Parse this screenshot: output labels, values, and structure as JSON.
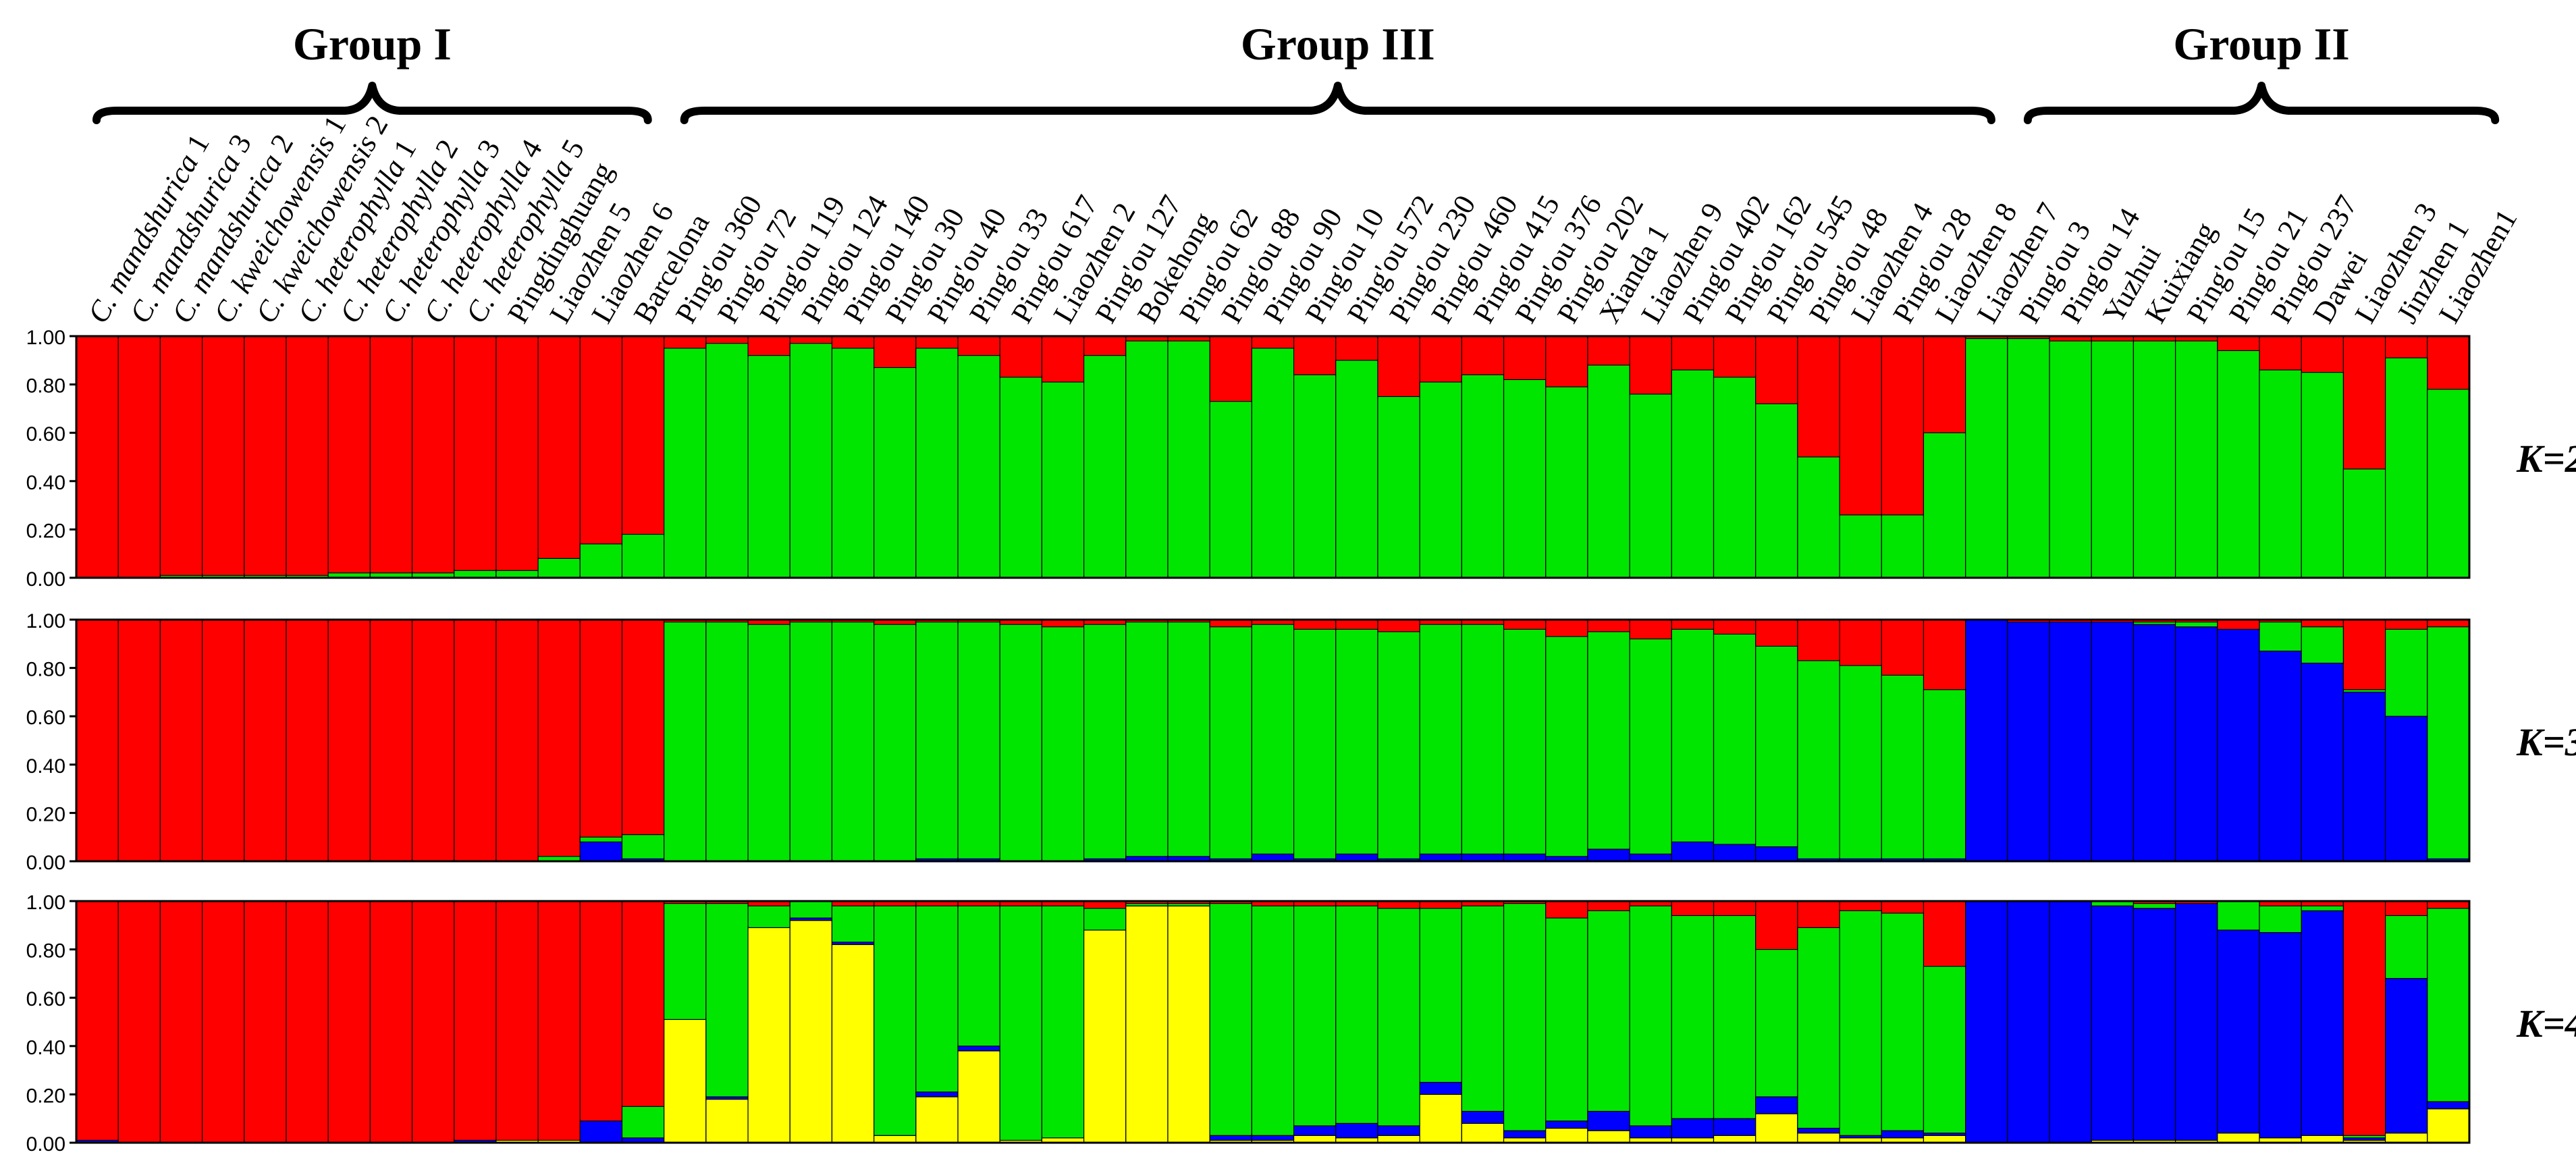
{
  "chart_data": {
    "type": "bar",
    "stacked": true,
    "title": "",
    "xlabel": "",
    "ylabel": "",
    "ylim": [
      0,
      1
    ],
    "y_ticks": [
      "0.00",
      "0.20",
      "0.40",
      "0.60",
      "0.80",
      "1.00"
    ],
    "colors": {
      "red": "#ff0000",
      "green": "#00e600",
      "blue": "#0000ff",
      "yellow": "#ffff00"
    },
    "groups": [
      {
        "name": "Group I",
        "start": 0,
        "end": 13
      },
      {
        "name": "Group III",
        "start": 14,
        "end": 45
      },
      {
        "name": "Group II",
        "start": 46,
        "end": 57
      }
    ],
    "categories": [
      {
        "plain": "C. mandshurica 1",
        "prefix": "C. mandshurica",
        "suffix": " 1",
        "italic": true
      },
      {
        "plain": "C. mandshurica 3",
        "prefix": "C. mandshurica",
        "suffix": " 3",
        "italic": true
      },
      {
        "plain": "C. mandshurica 2",
        "prefix": "C. mandshurica",
        "suffix": " 2",
        "italic": true
      },
      {
        "plain": "C. kweichowensis 1",
        "prefix": "C. kweichowensis",
        "suffix": " 1",
        "italic": true
      },
      {
        "plain": "C. kweichowensis 2",
        "prefix": "C. kweichowensis",
        "suffix": " 2",
        "italic": true
      },
      {
        "plain": "C. heterophylla 1",
        "prefix": "C. heterophylla",
        "suffix": " 1",
        "italic": true
      },
      {
        "plain": "C. heterophylla 2",
        "prefix": "C. heterophylla",
        "suffix": " 2",
        "italic": true
      },
      {
        "plain": "C. heterophylla 3",
        "prefix": "C. heterophylla",
        "suffix": " 3",
        "italic": true
      },
      {
        "plain": "C. heterophylla 4",
        "prefix": "C. heterophylla",
        "suffix": " 4",
        "italic": true
      },
      {
        "plain": "C. heterophylla 5",
        "prefix": "C. heterophylla",
        "suffix": " 5",
        "italic": true
      },
      {
        "plain": "Pingdinghuang",
        "italic": false
      },
      {
        "plain": "Liaozhen 5",
        "italic": false
      },
      {
        "plain": "Liaozhen 6",
        "italic": false
      },
      {
        "plain": "Barcelona",
        "italic": false
      },
      {
        "plain": "Ping'ou 360",
        "italic": false
      },
      {
        "plain": "Ping'ou 72",
        "italic": false
      },
      {
        "plain": "Ping'ou 119",
        "italic": false
      },
      {
        "plain": "Ping'ou 124",
        "italic": false
      },
      {
        "plain": "Ping'ou 140",
        "italic": false
      },
      {
        "plain": "Ping'ou 30",
        "italic": false
      },
      {
        "plain": "Ping'ou 40",
        "italic": false
      },
      {
        "plain": "Ping'ou 33",
        "italic": false
      },
      {
        "plain": "Ping'ou 617",
        "italic": false
      },
      {
        "plain": "Liaozhen 2",
        "italic": false
      },
      {
        "plain": "Ping'ou 127",
        "italic": false
      },
      {
        "plain": "Bokehong",
        "italic": false
      },
      {
        "plain": "Ping'ou 62",
        "italic": false
      },
      {
        "plain": "Ping'ou 88",
        "italic": false
      },
      {
        "plain": "Ping'ou 90",
        "italic": false
      },
      {
        "plain": "Ping'ou 10",
        "italic": false
      },
      {
        "plain": "Ping'ou 572",
        "italic": false
      },
      {
        "plain": "Ping'ou 230",
        "italic": false
      },
      {
        "plain": "Ping'ou 460",
        "italic": false
      },
      {
        "plain": "Ping'ou 415",
        "italic": false
      },
      {
        "plain": "Ping'ou 376",
        "italic": false
      },
      {
        "plain": "Ping'ou 202",
        "italic": false
      },
      {
        "plain": "Xianda 1",
        "italic": false
      },
      {
        "plain": "Liaozhen 9",
        "italic": false
      },
      {
        "plain": "Ping'ou 402",
        "italic": false
      },
      {
        "plain": "Ping'ou 162",
        "italic": false
      },
      {
        "plain": "Ping'ou 545",
        "italic": false
      },
      {
        "plain": "Ping'ou 48",
        "italic": false
      },
      {
        "plain": "Liaozhen 4",
        "italic": false
      },
      {
        "plain": "Ping'ou 28",
        "italic": false
      },
      {
        "plain": "Liaozhen 8",
        "italic": false
      },
      {
        "plain": "Liaozhen 7",
        "italic": false
      },
      {
        "plain": "Ping'ou 3",
        "italic": false
      },
      {
        "plain": "Ping'ou 14",
        "italic": false
      },
      {
        "plain": "Yuzhui",
        "italic": false
      },
      {
        "plain": "Kuixiang",
        "italic": false
      },
      {
        "plain": "Ping'ou 15",
        "italic": false
      },
      {
        "plain": "Ping'ou 21",
        "italic": false
      },
      {
        "plain": "Ping'ou 237",
        "italic": false
      },
      {
        "plain": "Dawei",
        "italic": false
      },
      {
        "plain": "Liaozhen 3",
        "italic": false
      },
      {
        "plain": "Jinzhen 1",
        "italic": false
      },
      {
        "plain": "Liaozhen1",
        "italic": false
      }
    ],
    "panels": [
      {
        "label": "K=2",
        "order": [
          "green",
          "red"
        ],
        "series": {
          "green": [
            0,
            0,
            0.01,
            0.01,
            0.01,
            0.01,
            0.02,
            0.02,
            0.02,
            0.03,
            0.03,
            0.08,
            0.14,
            0.18,
            0.95,
            0.97,
            0.92,
            0.97,
            0.95,
            0.87,
            0.95,
            0.92,
            0.83,
            0.81,
            0.92,
            0.98,
            0.98,
            0.73,
            0.95,
            0.84,
            0.9,
            0.75,
            0.81,
            0.84,
            0.82,
            0.79,
            0.88,
            0.76,
            0.86,
            0.83,
            0.72,
            0.5,
            0.26,
            0.26,
            0.6,
            0.99,
            0.99,
            0.98,
            0.98,
            0.98,
            0.98,
            0.94,
            0.86,
            0.85,
            0.45,
            0.91,
            0.78
          ]
        }
      },
      {
        "label": "K=3",
        "order": [
          "blue",
          "green",
          "red"
        ],
        "series": {
          "blue": [
            0,
            0,
            0,
            0,
            0,
            0,
            0,
            0,
            0,
            0,
            0,
            0,
            0.08,
            0.01,
            0,
            0,
            0,
            0,
            0,
            0,
            0.01,
            0.01,
            0,
            0,
            0.01,
            0.02,
            0.02,
            0.01,
            0.03,
            0.01,
            0.03,
            0.01,
            0.03,
            0.03,
            0.03,
            0.02,
            0.05,
            0.03,
            0.08,
            0.07,
            0.06,
            0.01,
            0.01,
            0.01,
            0.01,
            1.0,
            0.99,
            0.99,
            0.99,
            0.98,
            0.97,
            0.96,
            0.87,
            0.82,
            0.7,
            0.6,
            0.01
          ],
          "green": [
            0,
            0,
            0,
            0,
            0,
            0,
            0,
            0,
            0,
            0,
            0,
            0.02,
            0.02,
            0.1,
            0.99,
            0.99,
            0.98,
            0.99,
            0.99,
            0.98,
            0.98,
            0.98,
            0.98,
            0.97,
            0.97,
            0.97,
            0.97,
            0.96,
            0.95,
            0.95,
            0.93,
            0.94,
            0.95,
            0.95,
            0.93,
            0.91,
            0.9,
            0.89,
            0.88,
            0.87,
            0.83,
            0.82,
            0.8,
            0.76,
            0.7,
            0,
            0,
            0,
            0,
            0.01,
            0.02,
            0,
            0.12,
            0.15,
            0.01,
            0.36,
            0.96
          ]
        }
      },
      {
        "label": "K=4",
        "order": [
          "yellow",
          "blue",
          "green",
          "red"
        ],
        "series": {
          "yellow": [
            0,
            0,
            0,
            0,
            0,
            0,
            0,
            0,
            0,
            0,
            0.01,
            0.01,
            0,
            0,
            0.51,
            0.18,
            0.89,
            0.92,
            0.82,
            0.03,
            0.19,
            0.38,
            0.01,
            0.02,
            0.88,
            0.98,
            0.98,
            0.01,
            0.01,
            0.03,
            0.02,
            0.03,
            0.2,
            0.08,
            0.02,
            0.06,
            0.05,
            0.02,
            0.02,
            0.03,
            0.12,
            0.04,
            0.02,
            0.02,
            0.03,
            0,
            0,
            0,
            0.01,
            0.01,
            0.01,
            0.04,
            0.02,
            0.03,
            0.01,
            0.04,
            0.14
          ],
          "blue": [
            0.01,
            0,
            0,
            0,
            0,
            0,
            0,
            0,
            0,
            0.01,
            0,
            0,
            0.09,
            0.02,
            0,
            0.01,
            0,
            0.01,
            0.01,
            0,
            0.02,
            0.02,
            0,
            0,
            0,
            0,
            0,
            0.02,
            0.02,
            0.04,
            0.06,
            0.04,
            0.05,
            0.05,
            0.03,
            0.03,
            0.08,
            0.05,
            0.08,
            0.07,
            0.07,
            0.02,
            0.01,
            0.03,
            0.01,
            1.0,
            1.0,
            1.0,
            0.97,
            0.96,
            0.98,
            0.84,
            0.85,
            0.93,
            0.01,
            0.64,
            0.03
          ],
          "green": [
            0,
            0,
            0,
            0,
            0,
            0,
            0,
            0,
            0,
            0,
            0,
            0,
            0,
            0.13,
            0.48,
            0.8,
            0.09,
            0.07,
            0.15,
            0.95,
            0.77,
            0.58,
            0.97,
            0.96,
            0.09,
            0.01,
            0.01,
            0.96,
            0.95,
            0.91,
            0.9,
            0.9,
            0.72,
            0.85,
            0.94,
            0.84,
            0.83,
            0.91,
            0.84,
            0.84,
            0.61,
            0.83,
            0.93,
            0.9,
            0.69,
            0,
            0,
            0,
            0.02,
            0.02,
            0,
            0.12,
            0.11,
            0.02,
            0.01,
            0.26,
            0.8
          ]
        }
      }
    ]
  }
}
